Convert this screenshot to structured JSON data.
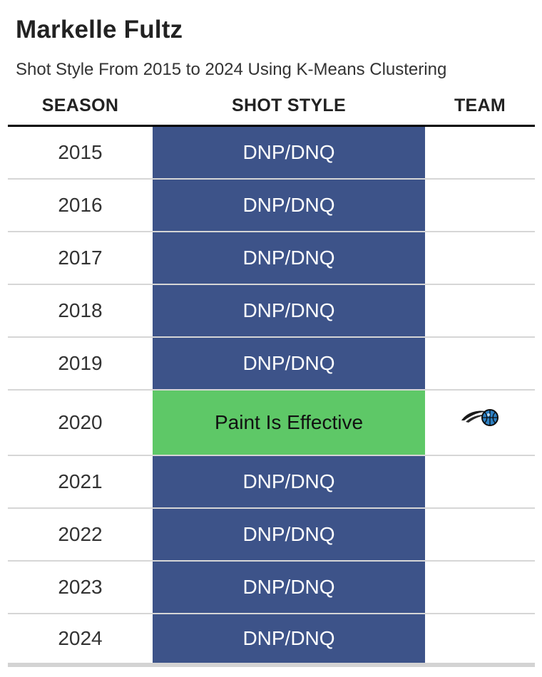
{
  "chart_data": {
    "type": "table",
    "title": "Markelle Fultz",
    "subtitle": "Shot Style From 2015 to 2024 Using K-Means Clustering",
    "columns": [
      "SEASON",
      "SHOT STYLE",
      "TEAM"
    ],
    "colors": {
      "DNP/DNQ": {
        "bg": "#3d5389",
        "fg": "#ffffff"
      },
      "Paint Is Effective": {
        "bg": "#5ec867",
        "fg": "#111111"
      }
    },
    "rows": [
      {
        "season": "2015",
        "style": "DNP/DNQ",
        "team_icon": ""
      },
      {
        "season": "2016",
        "style": "DNP/DNQ",
        "team_icon": ""
      },
      {
        "season": "2017",
        "style": "DNP/DNQ",
        "team_icon": ""
      },
      {
        "season": "2018",
        "style": "DNP/DNQ",
        "team_icon": ""
      },
      {
        "season": "2019",
        "style": "DNP/DNQ",
        "team_icon": ""
      },
      {
        "season": "2020",
        "style": "Paint Is Effective",
        "team_icon": "orlando-magic-logo-icon"
      },
      {
        "season": "2021",
        "style": "DNP/DNQ",
        "team_icon": ""
      },
      {
        "season": "2022",
        "style": "DNP/DNQ",
        "team_icon": ""
      },
      {
        "season": "2023",
        "style": "DNP/DNQ",
        "team_icon": ""
      },
      {
        "season": "2024",
        "style": "DNP/DNQ",
        "team_icon": ""
      }
    ]
  }
}
